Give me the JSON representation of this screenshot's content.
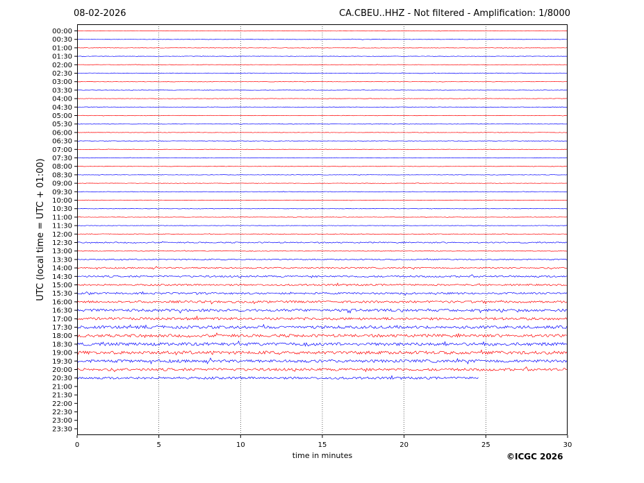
{
  "header": {
    "date": "08-02-2026",
    "title": "CA.CBEU..HHZ - Not filtered - Amplification: 1/8000"
  },
  "footer": {
    "credit": "©ICGC 2026"
  },
  "chart_data": {
    "type": "line",
    "xlabel": "time in minutes",
    "ylabel": "UTC (local time = UTC + 01:00)",
    "xlim": [
      0,
      30
    ],
    "x_ticks": [
      0,
      5,
      10,
      15,
      20,
      25,
      30
    ],
    "grid": "vertical dotted lines at 5-minute intervals",
    "row_labels": [
      "00:00",
      "00:30",
      "01:00",
      "01:30",
      "02:00",
      "02:30",
      "03:00",
      "03:30",
      "04:00",
      "04:30",
      "05:00",
      "05:30",
      "06:00",
      "06:30",
      "07:00",
      "07:30",
      "08:00",
      "08:30",
      "09:00",
      "09:30",
      "10:00",
      "10:30",
      "11:00",
      "11:30",
      "12:00",
      "12:30",
      "13:00",
      "13:30",
      "14:00",
      "14:30",
      "15:00",
      "15:30",
      "16:00",
      "16:30",
      "17:00",
      "17:30",
      "18:00",
      "18:30",
      "19:00",
      "19:30",
      "20:00",
      "20:30",
      "21:00",
      "21:30",
      "22:00",
      "22:30",
      "23:00",
      "23:30"
    ],
    "trace_colors": [
      "#ff0000",
      "#0000ff"
    ],
    "trace_count": 42,
    "last_trace_end_minutes": 24.6,
    "relative_noise_amplitude": [
      0.3,
      0.3,
      0.3,
      0.3,
      0.3,
      0.4,
      0.3,
      0.3,
      0.3,
      0.3,
      0.3,
      0.3,
      0.3,
      0.3,
      0.3,
      0.3,
      0.3,
      0.3,
      0.3,
      0.3,
      0.3,
      0.3,
      0.3,
      0.3,
      0.4,
      0.8,
      0.5,
      0.8,
      1.0,
      1.2,
      1.2,
      1.3,
      1.5,
      1.8,
      1.8,
      2.0,
      2.0,
      2.2,
      2.2,
      2.0,
      1.8,
      1.6
    ]
  }
}
